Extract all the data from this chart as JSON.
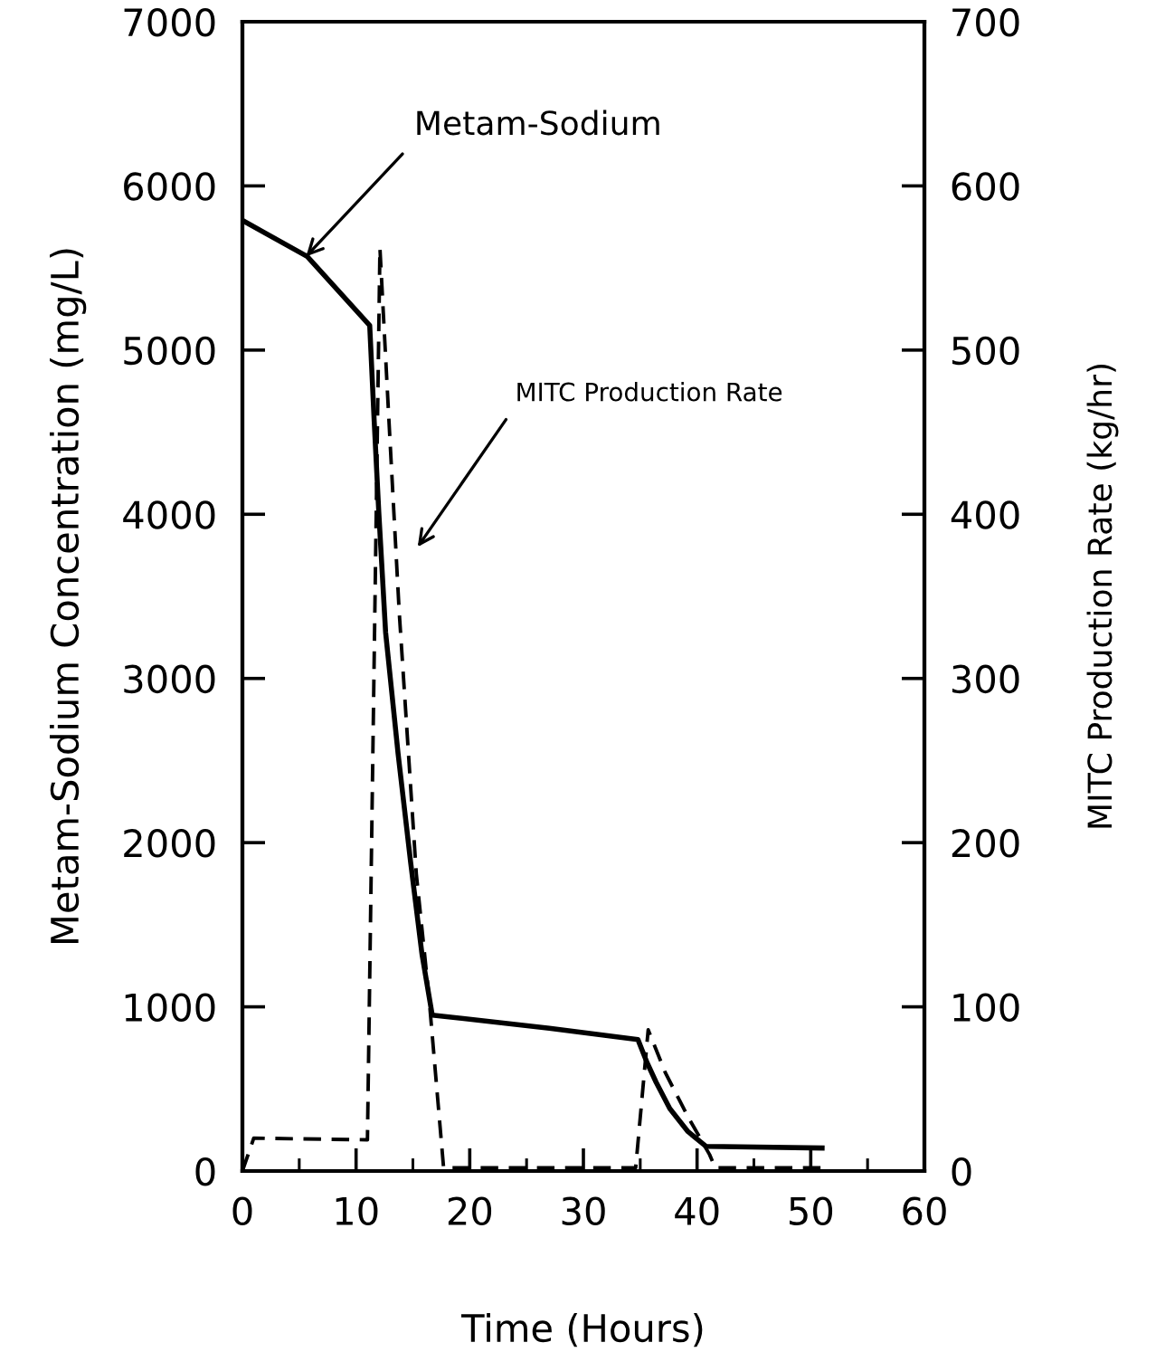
{
  "chart_data": {
    "type": "line",
    "xlabel": "Time (Hours)",
    "ylabel": "Metam-Sodium Concentration (mg/L)",
    "y2label": "MITC Production Rate (kg/hr)",
    "xlim": [
      0,
      60
    ],
    "xticks": [
      0,
      {
        "value": 5,
        "label": null
      },
      10,
      {
        "value": 15,
        "label": null
      },
      20,
      {
        "value": 25,
        "label": null
      },
      30,
      {
        "value": 35,
        "label": null
      },
      40,
      {
        "value": 45,
        "label": null
      },
      50,
      {
        "value": 55,
        "label": null
      },
      60
    ],
    "ylim": [
      0,
      7000
    ],
    "yticks": [
      0,
      1000,
      2000,
      3000,
      4000,
      5000,
      6000,
      7000
    ],
    "y2lim": [
      0,
      700
    ],
    "y2ticks": [
      0,
      100,
      200,
      300,
      400,
      500,
      600,
      700
    ],
    "series": [
      {
        "color": "#000000",
        "line_style": "solid",
        "x": [
          0,
          5.7,
          11.2,
          11.6,
          12.0,
          12.6,
          13.7,
          14.8,
          15.8,
          16.7,
          27,
          34.8,
          35.6,
          36.4,
          37.6,
          39.2,
          40.8,
          51
        ],
        "values": [
          5790,
          5570,
          5150,
          4560,
          4010,
          3280,
          2540,
          1880,
          1320,
          950,
          870,
          800,
          660,
          540,
          380,
          240,
          150,
          140
        ]
      },
      {
        "color": "#000000",
        "line_style": "dashed",
        "axis": "y2",
        "x": [
          0,
          1,
          11,
          12.1,
          12.9,
          13.8,
          15.3,
          16.4,
          17.7,
          34.6,
          35.7,
          37.2,
          39.2,
          41.1,
          41.6,
          51
        ],
        "values": [
          0,
          20,
          19,
          562,
          456,
          340,
          181,
          107,
          2,
          2,
          86,
          60,
          33,
          10,
          2,
          2
        ]
      }
    ],
    "annotations": [
      {
        "text": "Metam-Sodium",
        "x": 5.6,
        "y": 5570
      },
      "MITC Production Rate"
    ]
  }
}
